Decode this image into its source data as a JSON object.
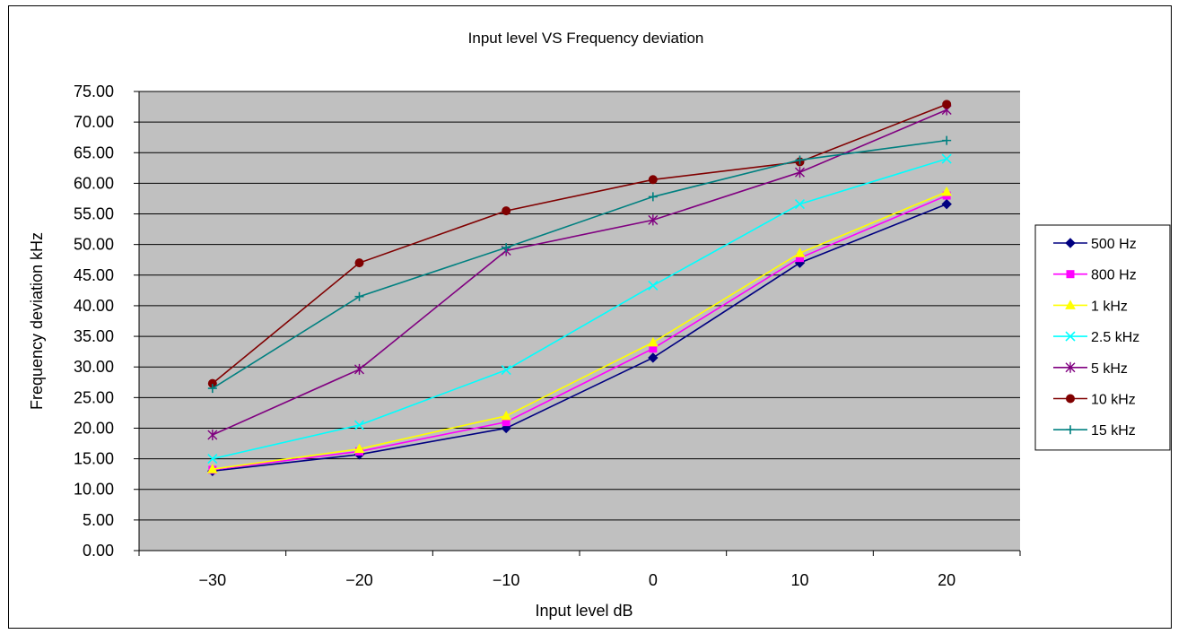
{
  "chart_data": {
    "type": "line",
    "title": "Input level VS Frequency deviation",
    "xlabel": "Input level dB",
    "ylabel": "Frequency deviation kHz",
    "categories": [
      "-30",
      "-20",
      "-10",
      "0",
      "10",
      "20"
    ],
    "x": [
      -30,
      -20,
      -10,
      0,
      10,
      20
    ],
    "ylim": [
      0,
      75
    ],
    "ytick_step": 5,
    "ytick_labels": [
      "0.00",
      "5.00",
      "10.00",
      "15.00",
      "20.00",
      "25.00",
      "30.00",
      "35.00",
      "40.00",
      "45.00",
      "50.00",
      "55.00",
      "60.00",
      "65.00",
      "70.00",
      "75.00"
    ],
    "xtick_labels": [
      "−30",
      "−20",
      "−10",
      "0",
      "10",
      "20"
    ],
    "grid": true,
    "plot_background": "#C0C0C0",
    "legend_position": "right",
    "series": [
      {
        "name": "500 Hz",
        "color": "#000080",
        "marker": "diamond",
        "values": [
          13.0,
          15.7,
          20.0,
          31.5,
          47.0,
          56.6
        ]
      },
      {
        "name": "800 Hz",
        "color": "#FF00FF",
        "marker": "square",
        "values": [
          13.2,
          16.2,
          21.0,
          33.0,
          47.8,
          58.0
        ]
      },
      {
        "name": "1 kHz",
        "color": "#FFFF00",
        "marker": "triangle",
        "values": [
          13.3,
          16.6,
          22.0,
          34.0,
          48.6,
          58.6
        ]
      },
      {
        "name": "2.5 kHz",
        "color": "#00FFFF",
        "marker": "x",
        "values": [
          15.0,
          20.5,
          29.5,
          43.3,
          56.6,
          64.0
        ]
      },
      {
        "name": "5 kHz",
        "color": "#800080",
        "marker": "star",
        "values": [
          18.9,
          29.6,
          49.0,
          54.0,
          61.8,
          72.0
        ]
      },
      {
        "name": "10 kHz",
        "color": "#800000",
        "marker": "circle",
        "values": [
          27.3,
          47.0,
          55.5,
          60.6,
          63.5,
          72.9
        ]
      },
      {
        "name": "15 kHz",
        "color": "#008080",
        "marker": "plus",
        "values": [
          26.5,
          41.5,
          49.5,
          57.8,
          63.8,
          67.0
        ]
      }
    ]
  }
}
